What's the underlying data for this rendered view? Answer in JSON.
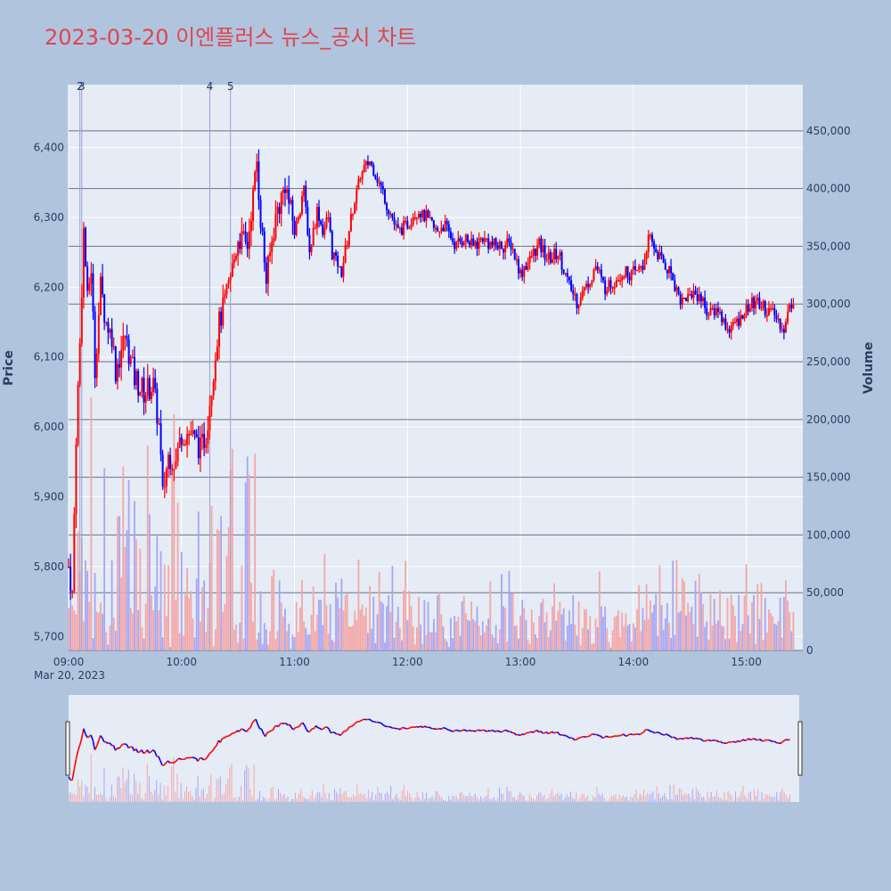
{
  "title": "2023-03-20 이엔플러스 뉴스_공시 차트",
  "colors": {
    "background": "#b0c4de",
    "plot_bg": "#e5ecf6",
    "up": "#ff0000",
    "down": "#0000ff",
    "up_volume": "#f4a6a6",
    "down_volume": "#a6a6f4",
    "title": "#e0454f"
  },
  "chart_data": {
    "type": "candlestick",
    "ylabel": "Price",
    "y2label": "Volume",
    "x_date_label": "Mar 20, 2023",
    "x_ticks": [
      "09:00",
      "10:00",
      "11:00",
      "12:00",
      "13:00",
      "14:00",
      "15:00"
    ],
    "price_ticks": [
      "5,700",
      "5,800",
      "5,900",
      "6,000",
      "6,100",
      "6,200",
      "6,300",
      "6,400"
    ],
    "volume_ticks": [
      "0",
      "50,000",
      "100,000",
      "150,000",
      "200,000",
      "250,000",
      "300,000",
      "350,000",
      "400,000",
      "450,000"
    ],
    "price_range": [
      5680,
      6490
    ],
    "volume_range": [
      0,
      490000
    ],
    "time_range": [
      "09:00",
      "15:30"
    ],
    "grid": true,
    "news_markers": [
      {
        "label": "2",
        "time": "09:06"
      },
      {
        "label": "3",
        "time": "09:07"
      },
      {
        "label": "4",
        "time": "10:15"
      },
      {
        "label": "5",
        "time": "10:26"
      }
    ],
    "price_keypoints": [
      [
        "09:00",
        5800
      ],
      [
        "09:02",
        5760
      ],
      [
        "09:04",
        5990
      ],
      [
        "09:06",
        6120
      ],
      [
        "09:08",
        6280
      ],
      [
        "09:10",
        6180
      ],
      [
        "09:12",
        6230
      ],
      [
        "09:14",
        6080
      ],
      [
        "09:17",
        6200
      ],
      [
        "09:20",
        6150
      ],
      [
        "09:23",
        6130
      ],
      [
        "09:25",
        6080
      ],
      [
        "09:30",
        6130
      ],
      [
        "09:35",
        6070
      ],
      [
        "09:40",
        6050
      ],
      [
        "09:45",
        6060
      ],
      [
        "09:48",
        6000
      ],
      [
        "09:50",
        5900
      ],
      [
        "09:53",
        5960
      ],
      [
        "09:57",
        5950
      ],
      [
        "10:00",
        5990
      ],
      [
        "10:05",
        5990
      ],
      [
        "10:10",
        5970
      ],
      [
        "10:13",
        5990
      ],
      [
        "10:16",
        6060
      ],
      [
        "10:20",
        6150
      ],
      [
        "10:25",
        6200
      ],
      [
        "10:30",
        6270
      ],
      [
        "10:35",
        6260
      ],
      [
        "10:40",
        6380
      ],
      [
        "10:42",
        6300
      ],
      [
        "10:45",
        6210
      ],
      [
        "10:50",
        6300
      ],
      [
        "10:55",
        6350
      ],
      [
        "11:00",
        6280
      ],
      [
        "11:05",
        6340
      ],
      [
        "11:08",
        6250
      ],
      [
        "11:12",
        6310
      ],
      [
        "11:15",
        6280
      ],
      [
        "11:18",
        6300
      ],
      [
        "11:20",
        6250
      ],
      [
        "11:25",
        6220
      ],
      [
        "11:30",
        6300
      ],
      [
        "11:35",
        6360
      ],
      [
        "11:40",
        6380
      ],
      [
        "11:45",
        6350
      ],
      [
        "11:50",
        6310
      ],
      [
        "11:55",
        6280
      ],
      [
        "12:00",
        6290
      ],
      [
        "12:05",
        6310
      ],
      [
        "12:10",
        6300
      ],
      [
        "12:15",
        6280
      ],
      [
        "12:20",
        6290
      ],
      [
        "12:25",
        6260
      ],
      [
        "12:30",
        6270
      ],
      [
        "12:35",
        6260
      ],
      [
        "12:40",
        6270
      ],
      [
        "12:45",
        6260
      ],
      [
        "12:50",
        6260
      ],
      [
        "12:55",
        6260
      ],
      [
        "13:00",
        6220
      ],
      [
        "13:05",
        6240
      ],
      [
        "13:10",
        6260
      ],
      [
        "13:15",
        6240
      ],
      [
        "13:20",
        6250
      ],
      [
        "13:25",
        6210
      ],
      [
        "13:30",
        6180
      ],
      [
        "13:35",
        6200
      ],
      [
        "13:40",
        6230
      ],
      [
        "13:45",
        6200
      ],
      [
        "13:50",
        6210
      ],
      [
        "13:55",
        6220
      ],
      [
        "14:00",
        6220
      ],
      [
        "14:05",
        6230
      ],
      [
        "14:08",
        6270
      ],
      [
        "14:12",
        6250
      ],
      [
        "14:15",
        6240
      ],
      [
        "14:20",
        6220
      ],
      [
        "14:25",
        6180
      ],
      [
        "14:30",
        6190
      ],
      [
        "14:35",
        6190
      ],
      [
        "14:40",
        6160
      ],
      [
        "14:45",
        6170
      ],
      [
        "14:50",
        6140
      ],
      [
        "14:55",
        6150
      ],
      [
        "15:00",
        6170
      ],
      [
        "15:05",
        6180
      ],
      [
        "15:10",
        6170
      ],
      [
        "15:15",
        6160
      ],
      [
        "15:20",
        6140
      ],
      [
        "15:23",
        6170
      ],
      [
        "15:25",
        6180
      ]
    ]
  }
}
